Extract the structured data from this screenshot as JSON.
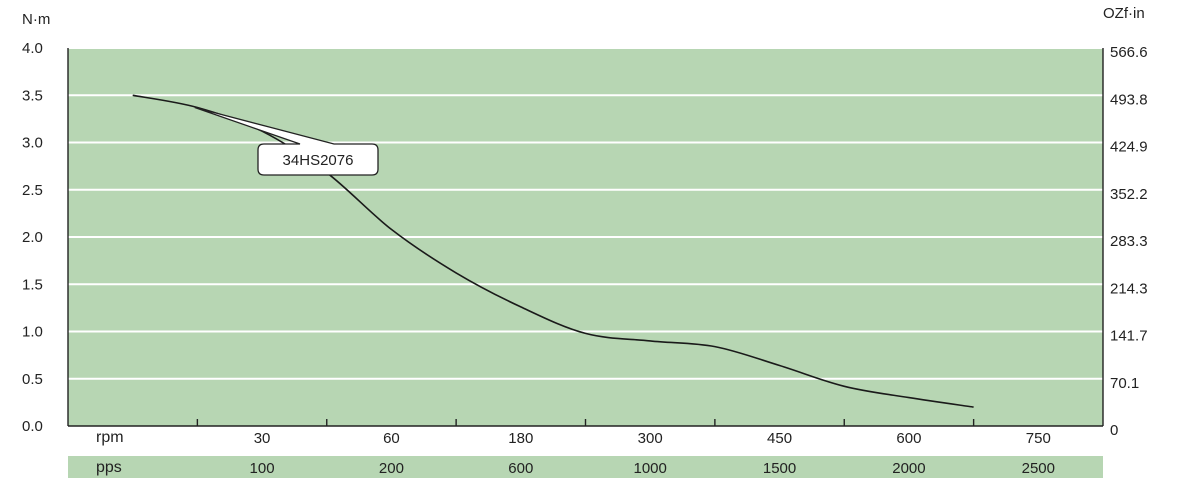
{
  "chart_data": {
    "type": "line",
    "left_unit": "N·m",
    "right_unit": "OZf·in",
    "y_left_ticks": [
      "0.0",
      "0.5",
      "1.0",
      "1.5",
      "2.0",
      "2.5",
      "3.0",
      "3.5",
      "4.0"
    ],
    "y_right_ticks": [
      "0",
      "70.1",
      "141.7",
      "214.3",
      "283.3",
      "352.2",
      "424.9",
      "493.8",
      "566.6"
    ],
    "ylim": [
      0,
      4.0
    ],
    "grid": true,
    "x_rows": [
      {
        "label": "rpm",
        "values": [
          "30",
          "60",
          "180",
          "300",
          "450",
          "600",
          "750"
        ]
      },
      {
        "label": "pps",
        "values": [
          "100",
          "200",
          "600",
          "1000",
          "1500",
          "2000",
          "2500"
        ]
      }
    ],
    "series": [
      {
        "name": "34HS2076",
        "points": [
          {
            "x": 0.5,
            "y": 3.5
          },
          {
            "x": 1.0,
            "y": 3.37
          },
          {
            "x": 1.5,
            "y": 3.12
          },
          {
            "x": 2.0,
            "y": 2.68
          },
          {
            "x": 2.5,
            "y": 2.08
          },
          {
            "x": 3.0,
            "y": 1.62
          },
          {
            "x": 3.5,
            "y": 1.26
          },
          {
            "x": 4.0,
            "y": 0.98
          },
          {
            "x": 4.5,
            "y": 0.9
          },
          {
            "x": 5.0,
            "y": 0.84
          },
          {
            "x": 5.5,
            "y": 0.64
          },
          {
            "x": 6.0,
            "y": 0.42
          },
          {
            "x": 6.5,
            "y": 0.3
          },
          {
            "x": 7.0,
            "y": 0.2
          }
        ]
      }
    ],
    "annotation": {
      "text": "34HS2076",
      "series": 0
    },
    "colors": {
      "plot_bg": "#b7d6b3",
      "grid": "#ffffff",
      "curve": "#1a1a1a",
      "axis": "#222222"
    }
  }
}
